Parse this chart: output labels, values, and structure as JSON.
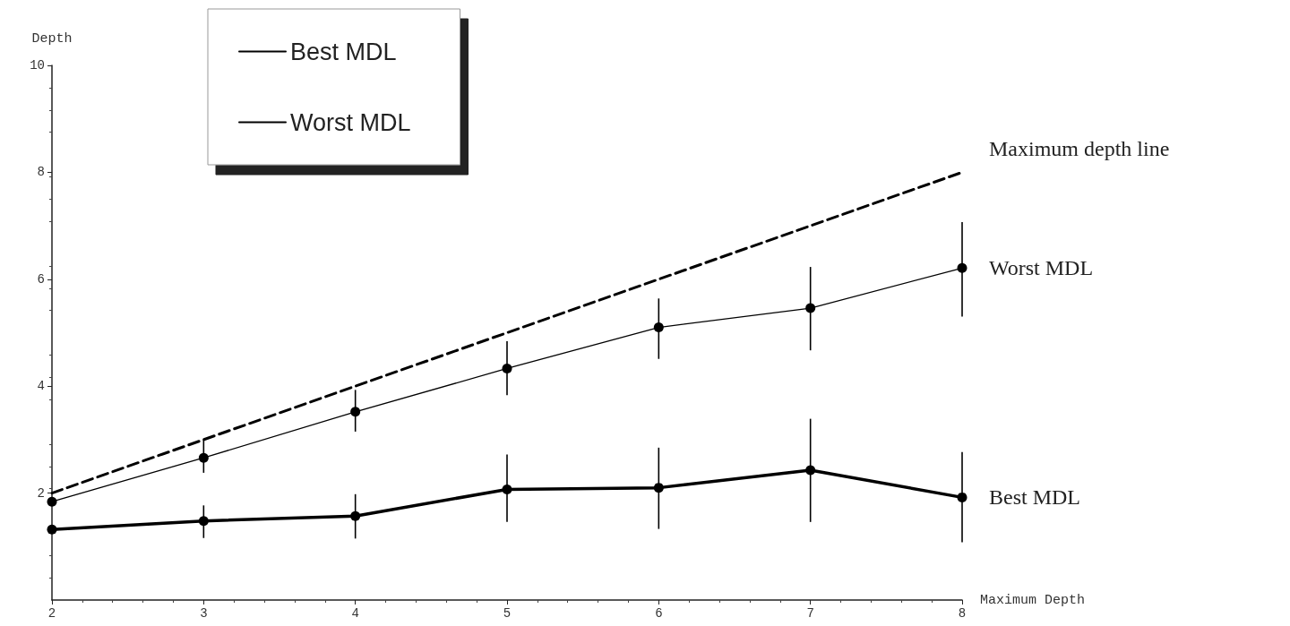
{
  "chart_data": {
    "type": "line",
    "xlabel": "Maximum Depth",
    "ylabel": "Depth",
    "x": [
      2,
      3,
      4,
      5,
      6,
      7,
      8
    ],
    "xlim": [
      2,
      8
    ],
    "xticks": [
      2,
      3,
      4,
      5,
      6,
      7,
      8
    ],
    "ylim": [
      0,
      10
    ],
    "yticks": [
      2,
      4,
      6,
      8,
      10
    ],
    "grid": false,
    "legend": "top left",
    "marker": "circle",
    "series": [
      {
        "name": "Best MDL",
        "color": "#000000",
        "values": [
          1.32,
          1.48,
          1.57,
          2.07,
          2.1,
          2.43,
          1.92
        ],
        "errors": [
          null,
          [
            1.16,
            1.77
          ],
          [
            1.15,
            1.98
          ],
          [
            1.46,
            2.72
          ],
          [
            1.33,
            2.85
          ],
          [
            1.46,
            3.39
          ],
          [
            1.08,
            2.77
          ]
        ]
      },
      {
        "name": "Worst MDL",
        "color": "#000000",
        "values": [
          1.84,
          2.66,
          3.52,
          4.33,
          5.1,
          5.46,
          6.21
        ],
        "errors": [
          null,
          [
            2.38,
            3.0
          ],
          [
            3.15,
            3.93
          ],
          [
            3.83,
            4.84
          ],
          [
            4.51,
            5.64
          ],
          [
            4.67,
            6.23
          ],
          [
            5.3,
            7.07
          ]
        ]
      },
      {
        "name": "Maximum depth line",
        "color": "#000000",
        "values": [
          2,
          3,
          4,
          5,
          6,
          7,
          8
        ],
        "marker": "none",
        "line_style": "dashed"
      }
    ]
  }
}
